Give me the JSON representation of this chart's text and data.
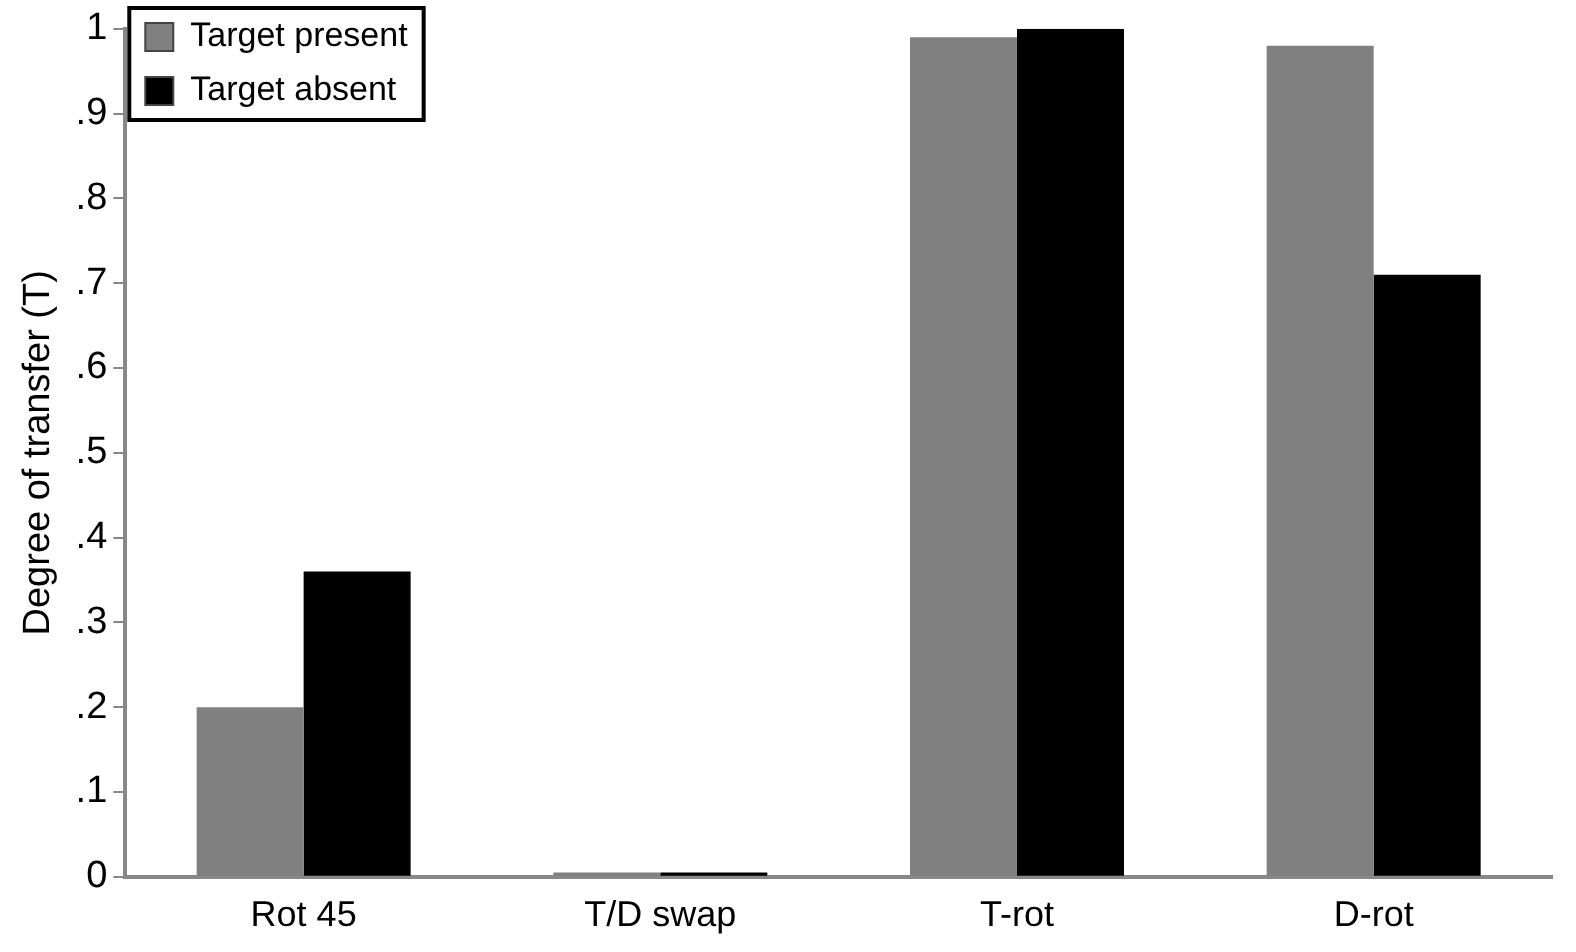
{
  "chart_data": {
    "type": "bar",
    "ylabel": "Degree of transfer (T)",
    "categories": [
      "Rot 45",
      "T/D swap",
      "T-rot",
      "D-rot"
    ],
    "series": [
      {
        "name": "Target present",
        "color": "#808080",
        "values": [
          0.2,
          0.005,
          0.99,
          0.98
        ]
      },
      {
        "name": "Target absent",
        "color": "#000000",
        "values": [
          0.36,
          0.005,
          1.0,
          0.71
        ]
      }
    ],
    "ylim": [
      0,
      1
    ],
    "yticks": [
      0,
      {
        "value": 0.1,
        "label": ".1"
      },
      {
        "value": 0.2,
        "label": ".2"
      },
      {
        "value": 0.3,
        "label": ".3"
      },
      {
        "value": 0.4,
        "label": ".4"
      },
      {
        "value": 0.5,
        "label": ".5"
      },
      {
        "value": 0.6,
        "label": ".6"
      },
      {
        "value": 0.7,
        "label": ".7"
      },
      {
        "value": 0.8,
        "label": ".8"
      },
      {
        "value": 0.9,
        "label": ".9"
      },
      1
    ],
    "grid": false,
    "legend": "top left"
  }
}
